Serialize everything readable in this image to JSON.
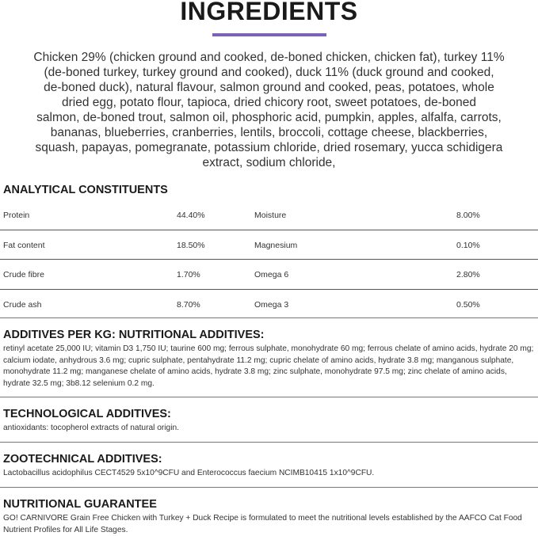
{
  "title": "INGREDIENTS",
  "accent_color": "#7b61b8",
  "ingredients_lines": [
    "Chicken 29% (chicken ground and cooked, de-boned chicken, chicken fat), turkey 11%",
    "(de-boned turkey, turkey ground and cooked), duck 11% (duck ground and cooked,",
    "de-boned duck), natural flavour, salmon ground and cooked, peas, potatoes, whole",
    "dried egg, potato flour, tapioca, dried chicory root, sweet potatoes, de-boned",
    "salmon, de-boned trout, salmon oil, phosphoric acid, pumpkin, apples, alfalfa, carrots,",
    "bananas, blueberries, cranberries, lentils, broccoli, cottage cheese, blackberries,",
    "squash, papayas, pomegranate, potassium chloride, dried rosemary, yucca schidigera",
    "extract, sodium chloride,"
  ],
  "analytical": {
    "heading": "ANALYTICAL CONSTITUENTS",
    "rows": [
      {
        "a": "Protein",
        "av": "44.40%",
        "b": "Moisture",
        "bv": "8.00%"
      },
      {
        "a": "Fat content",
        "av": "18.50%",
        "b": "Magnesium",
        "bv": "0.10%"
      },
      {
        "a": "Crude fibre",
        "av": "1.70%",
        "b": "Omega 6",
        "bv": "2.80%"
      },
      {
        "a": "Crude ash",
        "av": "8.70%",
        "b": "Omega 3",
        "bv": "0.50%"
      }
    ]
  },
  "nutritional_additives": {
    "heading": "ADDITIVES PER KG: NUTRITIONAL ADDITIVES:",
    "text": "retinyl acetate 25,000 IU; vitamin D3 1,750 IU; taurine 600 mg; ferrous sulphate, monohydrate 60 mg; ferrous chelate of amino acids, hydrate 20 mg; calcium iodate, anhydrous 3.6 mg; cupric sulphate, pentahydrate 11.2 mg; cupric chelate of amino acids, hydrate 3.8 mg; manganous sulphate, monohydrate 11.2 mg; manganese chelate of amino acids, hydrate 3.8 mg; zinc sulphate, monohydrate 97.5 mg; zinc chelate of amino acids, hydrate 32.5 mg; 3b8.12 selenium 0.2 mg."
  },
  "technological_additives": {
    "heading": "TECHNOLOGICAL ADDITIVES:",
    "text": "antioxidants: tocopherol extracts of natural origin."
  },
  "zootechnical_additives": {
    "heading": "ZOOTECHNICAL ADDITIVES:",
    "text": "Lactobacillus acidophilus CECT4529 5x10^9CFU and Enterococcus faecium NCIMB10415 1x10^9CFU."
  },
  "nutritional_guarantee": {
    "heading": "NUTRITIONAL GUARANTEE",
    "text": "GO! CARNIVORE Grain Free Chicken with Turkey + Duck Recipe is formulated to meet the nutritional levels established by the AAFCO Cat Food Nutrient Profiles for All Life Stages."
  }
}
